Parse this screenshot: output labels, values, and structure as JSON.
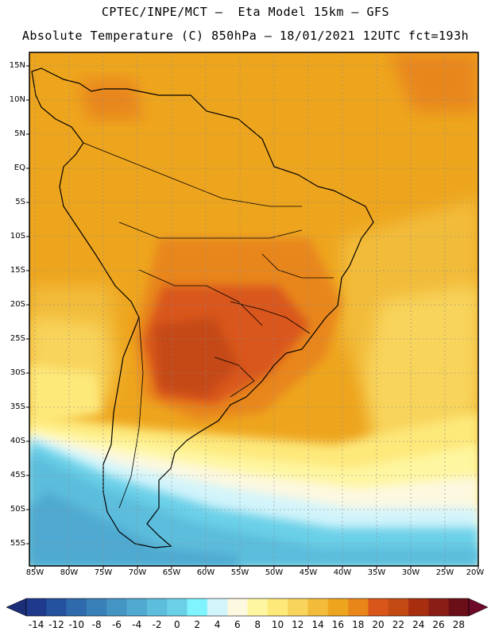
{
  "header": {
    "line1": "CPTEC/INPE/MCT –  Eta Model 15km – GFS",
    "line2": "Absolute Temperature (C) 850hPa – 18/01/2021 12UTC fct=193h"
  },
  "map": {
    "latitude_labels": [
      "15N",
      "10N",
      "5N",
      "EQ",
      "5S",
      "10S",
      "15S",
      "20S",
      "25S",
      "30S",
      "35S",
      "40S",
      "45S",
      "50S",
      "55S"
    ],
    "longitude_labels": [
      "85W",
      "80W",
      "75W",
      "70W",
      "65W",
      "60W",
      "55W",
      "50W",
      "45W",
      "40W",
      "35W",
      "30W",
      "25W",
      "20W"
    ]
  },
  "colorbar": {
    "ticks": [
      "-14",
      "-12",
      "-10",
      "-8",
      "-6",
      "-4",
      "-2",
      "0",
      "2",
      "4",
      "6",
      "8",
      "10",
      "12",
      "14",
      "16",
      "18",
      "20",
      "22",
      "24",
      "26",
      "28"
    ],
    "colors": [
      "#1f3a8c",
      "#24529e",
      "#2f6aac",
      "#3a80b8",
      "#4595c4",
      "#4fa9d0",
      "#5cbddc",
      "#6ad0e8",
      "#7ff4ff",
      "#d2f4fb",
      "#fdf8e0",
      "#fef6a0",
      "#fde87a",
      "#f8d45c",
      "#f2bc3a",
      "#eea51e",
      "#e8861a",
      "#d9561b",
      "#c44a14",
      "#a82e10",
      "#8a1e16",
      "#6a0f18"
    ],
    "under_color": "#1b2f78",
    "over_color": "#6d0a28"
  }
}
